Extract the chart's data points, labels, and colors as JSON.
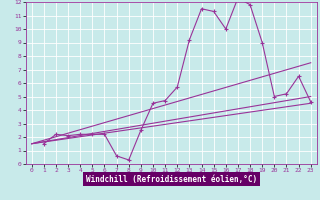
{
  "xlabel": "Windchill (Refroidissement éolien,°C)",
  "bg_color": "#c8eaea",
  "line_color": "#993399",
  "grid_color": "#ffffff",
  "bottom_bar_color": "#660066",
  "xlim": [
    -0.5,
    23.5
  ],
  "ylim": [
    0,
    12
  ],
  "xticks": [
    0,
    1,
    2,
    3,
    4,
    5,
    6,
    7,
    8,
    9,
    10,
    11,
    12,
    13,
    14,
    15,
    16,
    17,
    18,
    19,
    20,
    21,
    22,
    23
  ],
  "yticks": [
    0,
    1,
    2,
    3,
    4,
    5,
    6,
    7,
    8,
    9,
    10,
    11,
    12
  ],
  "main_x": [
    1,
    2,
    3,
    4,
    5,
    6,
    7,
    8,
    9,
    10,
    11,
    12,
    13,
    14,
    15,
    16,
    17,
    18,
    19,
    20,
    21,
    22,
    23
  ],
  "main_y": [
    1.5,
    2.2,
    2.1,
    2.2,
    2.2,
    2.2,
    0.6,
    0.3,
    2.5,
    4.5,
    4.7,
    5.7,
    9.2,
    11.5,
    11.3,
    10.0,
    12.3,
    11.8,
    9.0,
    5.0,
    5.2,
    6.5,
    4.6
  ],
  "line1_x": [
    0,
    23
  ],
  "line1_y": [
    1.5,
    7.5
  ],
  "line2_x": [
    0,
    23
  ],
  "line2_y": [
    1.5,
    5.0
  ],
  "line3_x": [
    0,
    23
  ],
  "line3_y": [
    1.5,
    4.5
  ],
  "font_color": "#993399",
  "xlabel_bg": "#660066",
  "tick_fontsize": 4.5,
  "label_fontsize": 5.5
}
